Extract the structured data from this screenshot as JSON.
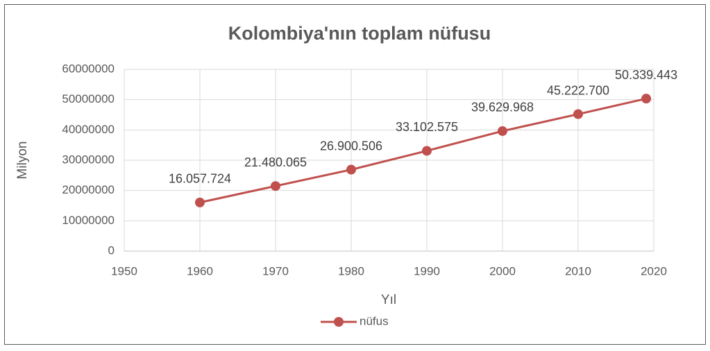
{
  "chart_data": {
    "type": "line",
    "title": "Kolombiya'nın toplam nüfusu",
    "xlabel": "Yıl",
    "ylabel": "Milyon",
    "x": [
      1960,
      1970,
      1980,
      1990,
      2000,
      2010,
      2019
    ],
    "series": [
      {
        "name": "nüfus",
        "color": "#c0504d",
        "values": [
          16057724,
          21480065,
          26900506,
          33102575,
          39629968,
          45222700,
          50339443
        ],
        "value_labels": [
          "16.057.724",
          "21.480.065",
          "26.900.506",
          "33.102.575",
          "39.629.968",
          "45.222.700",
          "50.339.443"
        ]
      }
    ],
    "xlim": [
      1950,
      2020
    ],
    "xticks": [
      1950,
      1960,
      1970,
      1980,
      1990,
      2000,
      2010,
      2020
    ],
    "ylim": [
      0,
      60000000
    ],
    "yticks": [
      0,
      10000000,
      20000000,
      30000000,
      40000000,
      50000000,
      60000000
    ],
    "grid": true,
    "legend": "bottom"
  }
}
